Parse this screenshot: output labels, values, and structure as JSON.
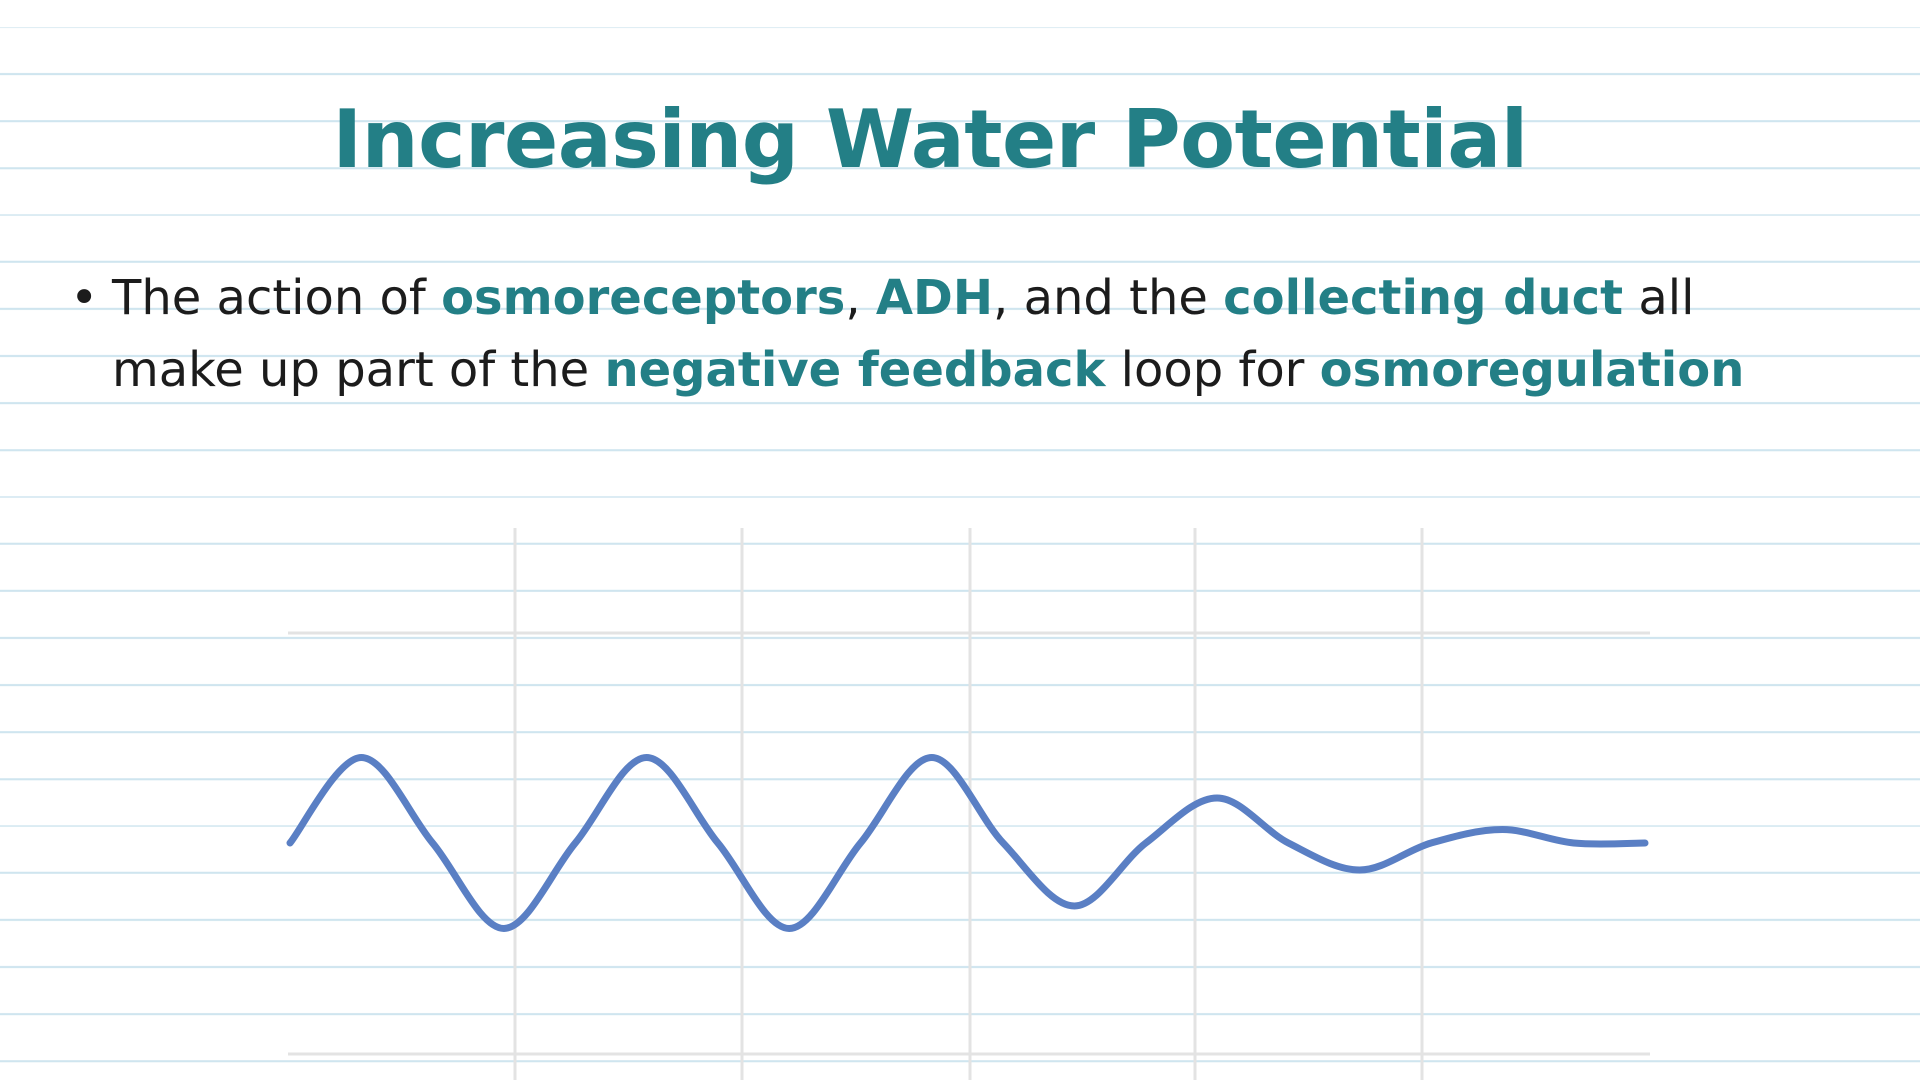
{
  "slide": {
    "title": "Increasing Water Potential",
    "bullet": {
      "t1": "The action of ",
      "k1": "osmoreceptors",
      "t2": ", ",
      "k2": "ADH",
      "t3": ", and the ",
      "k3": "collecting duct",
      "t4": " all make up part of the ",
      "k4": "negative feedback",
      "t5": " loop for ",
      "k5": "osmoregulation"
    }
  },
  "colors": {
    "accent": "#237f86",
    "body_text": "#1c1c1c",
    "ruled_lines": "#cfe5ef",
    "graph_grid": "#e3e3e3",
    "curve": "#5a7fc4"
  },
  "graph": {
    "curve_description_values": {
      "y": [
        0.0,
        0.95,
        0.0,
        -0.95,
        0.0,
        0.95,
        0.0,
        -0.95,
        0.0,
        0.95,
        0.0,
        -0.7,
        0.0,
        0.5,
        0.0,
        -0.3,
        0.0,
        0.15,
        0.0,
        0.0
      ],
      "baseline": 0
    }
  }
}
